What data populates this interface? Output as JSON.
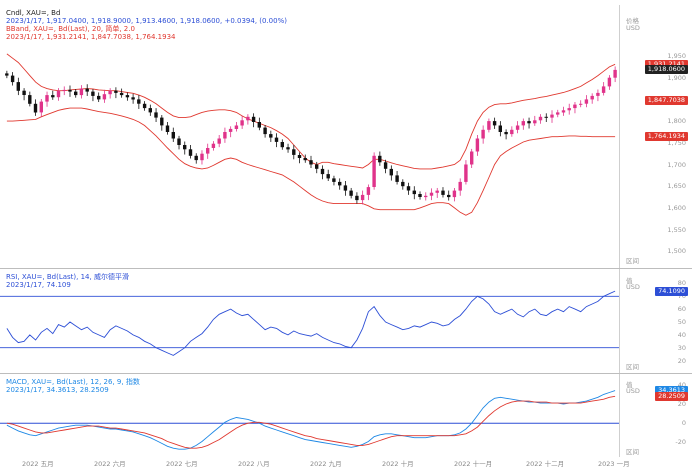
{
  "price_pane": {
    "legend_line1": "Cndl, XAU=, Bd",
    "legend_line2": "2023/1/17, 1,917.0400, 1,918.9000, 1,913.4600, 1,918.0600, +0.0394, (0.00%)",
    "legend_line3": "BBand, XAU=, Bd(Last), 20, 简单, 2.0",
    "legend_line4": "2023/1/17, 1,931.2141, 1,847.7038, 1,764.1934",
    "axis_unit": "价格",
    "axis_currency": "USD",
    "ticks": [
      "1,950",
      "1,900",
      "1,850",
      "1,800",
      "1,750",
      "1,700",
      "1,650",
      "1,600",
      "1,550",
      "1,500"
    ],
    "tags": [
      {
        "label": "1,931.2141",
        "color": "#e0382f"
      },
      {
        "label": "1,918.0600",
        "color": "#222222"
      },
      {
        "label": "1,847.7038",
        "color": "#e0382f"
      },
      {
        "label": "1,764.1934",
        "color": "#e0382f"
      }
    ],
    "footer_tag": "区间"
  },
  "rsi_pane": {
    "legend_line1": "RSI, XAU=, Bd(Last), 14, 威尔德平滑",
    "legend_line2": "2023/1/17, 74.109",
    "axis_unit": "值",
    "axis_currency": "USD",
    "ticks": [
      "80",
      "70",
      "60",
      "50",
      "40",
      "30",
      "20"
    ],
    "tag": {
      "label": "74.1090",
      "color": "#2d4fd6"
    },
    "footer_tag": "区间"
  },
  "macd_pane": {
    "legend_line1": "MACD, XAU=, Bd(Last), 12, 26, 9, 指数",
    "legend_line2": "2023/1/17, 34.3613, 28.2509",
    "axis_unit": "值",
    "axis_currency": "USD",
    "ticks": [
      "40",
      "20",
      "0",
      "-20"
    ],
    "tags": [
      {
        "label": "34.3613",
        "color": "#1e88e5"
      },
      {
        "label": "28.2509",
        "color": "#e0382f"
      }
    ],
    "footer_tag": "区间"
  },
  "date_axis": [
    "2022 五月",
    "2022 六月",
    "2022 七月",
    "2022 八月",
    "2022 九月",
    "2022 十月",
    "2022 十一月",
    "2022 十二月",
    "2023 一月"
  ],
  "colors": {
    "bull_candle": "#e0338a",
    "bear_candle": "#111111",
    "band": "#e0382f",
    "rsi": "#2d4fd6",
    "rsi_level": "#2d4fd6",
    "macd": "#1e88e5",
    "signal": "#e0382f"
  },
  "chart_data": [
    {
      "type": "candlestick",
      "title": "Cndl, XAU=, Bd",
      "ylabel": "价格",
      "ylim": [
        1480,
        1980
      ],
      "close": [
        1905,
        1890,
        1870,
        1860,
        1840,
        1820,
        1845,
        1860,
        1855,
        1870,
        1872,
        1868,
        1860,
        1875,
        1868,
        1858,
        1850,
        1862,
        1870,
        1865,
        1860,
        1855,
        1850,
        1840,
        1830,
        1820,
        1808,
        1790,
        1775,
        1760,
        1745,
        1735,
        1720,
        1710,
        1725,
        1738,
        1748,
        1760,
        1775,
        1782,
        1790,
        1802,
        1810,
        1798,
        1785,
        1770,
        1762,
        1752,
        1740,
        1735,
        1722,
        1715,
        1710,
        1700,
        1690,
        1678,
        1668,
        1660,
        1652,
        1640,
        1628,
        1618,
        1630,
        1648,
        1720,
        1705,
        1690,
        1675,
        1660,
        1650,
        1640,
        1632,
        1625,
        1628,
        1635,
        1640,
        1630,
        1625,
        1640,
        1660,
        1700,
        1730,
        1760,
        1780,
        1800,
        1790,
        1775,
        1770,
        1780,
        1790,
        1800,
        1795,
        1802,
        1810,
        1808,
        1815,
        1820,
        1825,
        1830,
        1838,
        1840,
        1850,
        1858,
        1865,
        1880,
        1900,
        1918
      ],
      "bb_upper": [
        1955,
        1945,
        1935,
        1920,
        1905,
        1890,
        1880,
        1875,
        1872,
        1870,
        1870,
        1872,
        1873,
        1874,
        1875,
        1874,
        1872,
        1871,
        1870,
        1870,
        1868,
        1866,
        1864,
        1860,
        1855,
        1848,
        1840,
        1830,
        1820,
        1812,
        1808,
        1808,
        1810,
        1815,
        1820,
        1823,
        1825,
        1826,
        1826,
        1824,
        1820,
        1812,
        1805,
        1800,
        1795,
        1790,
        1785,
        1778,
        1770,
        1760,
        1745,
        1730,
        1715,
        1705,
        1700,
        1705,
        1705,
        1702,
        1700,
        1698,
        1696,
        1694,
        1692,
        1700,
        1712,
        1712,
        1708,
        1704,
        1700,
        1697,
        1694,
        1691,
        1690,
        1690,
        1690,
        1692,
        1694,
        1697,
        1700,
        1710,
        1735,
        1770,
        1800,
        1820,
        1832,
        1838,
        1840,
        1840,
        1842,
        1845,
        1848,
        1850,
        1852,
        1855,
        1857,
        1860,
        1863,
        1866,
        1870,
        1875,
        1880,
        1888,
        1896,
        1905,
        1915,
        1925,
        1931
      ],
      "bb_lower": [
        1800,
        1800,
        1801,
        1802,
        1803,
        1804,
        1810,
        1815,
        1820,
        1825,
        1828,
        1830,
        1830,
        1830,
        1828,
        1825,
        1822,
        1820,
        1818,
        1815,
        1812,
        1808,
        1804,
        1798,
        1790,
        1778,
        1766,
        1752,
        1738,
        1725,
        1712,
        1702,
        1696,
        1692,
        1690,
        1692,
        1698,
        1705,
        1712,
        1715,
        1712,
        1705,
        1700,
        1696,
        1692,
        1688,
        1684,
        1680,
        1676,
        1668,
        1660,
        1650,
        1640,
        1630,
        1622,
        1616,
        1612,
        1610,
        1610,
        1610,
        1610,
        1610,
        1610,
        1605,
        1598,
        1596,
        1596,
        1596,
        1596,
        1596,
        1596,
        1596,
        1600,
        1605,
        1610,
        1612,
        1612,
        1610,
        1600,
        1590,
        1583,
        1590,
        1612,
        1640,
        1670,
        1700,
        1720,
        1730,
        1738,
        1745,
        1752,
        1756,
        1758,
        1760,
        1762,
        1764,
        1764,
        1765,
        1766,
        1766,
        1765,
        1765,
        1764,
        1764,
        1764,
        1764,
        1764
      ]
    },
    {
      "type": "line",
      "title": "RSI, XAU=, Bd(Last), 14, 威尔德平滑",
      "ylim": [
        15,
        85
      ],
      "levels": [
        70,
        30
      ],
      "series": [
        {
          "name": "RSI",
          "values": [
            45,
            38,
            34,
            35,
            40,
            36,
            42,
            45,
            41,
            48,
            46,
            50,
            47,
            44,
            46,
            42,
            40,
            38,
            44,
            47,
            45,
            43,
            40,
            38,
            35,
            33,
            30,
            28,
            26,
            24,
            27,
            30,
            35,
            38,
            41,
            46,
            52,
            56,
            58,
            60,
            57,
            55,
            56,
            52,
            48,
            44,
            46,
            45,
            42,
            40,
            43,
            41,
            40,
            39,
            41,
            38,
            36,
            34,
            33,
            31,
            30,
            36,
            45,
            58,
            62,
            55,
            50,
            48,
            46,
            44,
            45,
            47,
            46,
            48,
            50,
            49,
            47,
            48,
            52,
            55,
            60,
            66,
            70,
            68,
            64,
            58,
            56,
            58,
            60,
            56,
            54,
            58,
            60,
            56,
            55,
            58,
            60,
            58,
            62,
            60,
            58,
            62,
            64,
            66,
            70,
            72,
            74
          ]
        }
      ]
    },
    {
      "type": "line",
      "title": "MACD, XAU=, Bd(Last), 12, 26, 9, 指数",
      "ylim": [
        -32,
        45
      ],
      "levels": [
        0
      ],
      "series": [
        {
          "name": "MACD",
          "values": [
            -2,
            -5,
            -8,
            -10,
            -12,
            -13,
            -11,
            -9,
            -7,
            -5,
            -4,
            -3,
            -2,
            -2,
            -2,
            -3,
            -4,
            -5,
            -6,
            -6,
            -7,
            -8,
            -9,
            -11,
            -13,
            -15,
            -18,
            -21,
            -24,
            -26,
            -27,
            -27,
            -26,
            -23,
            -19,
            -14,
            -9,
            -4,
            1,
            4,
            6,
            5,
            4,
            2,
            0,
            -3,
            -5,
            -7,
            -9,
            -11,
            -13,
            -15,
            -17,
            -18,
            -19,
            -20,
            -21,
            -22,
            -23,
            -24,
            -25,
            -24,
            -22,
            -19,
            -14,
            -12,
            -11,
            -11,
            -12,
            -13,
            -14,
            -15,
            -15,
            -15,
            -14,
            -13,
            -13,
            -13,
            -12,
            -10,
            -6,
            0,
            8,
            16,
            22,
            26,
            27,
            26,
            25,
            24,
            23,
            22,
            22,
            21,
            21,
            21,
            21,
            20,
            21,
            21,
            22,
            23,
            25,
            27,
            30,
            32,
            34
          ]
        },
        {
          "name": "Signal",
          "values": [
            0,
            -1,
            -3,
            -5,
            -7,
            -9,
            -10,
            -10,
            -9,
            -8,
            -7,
            -6,
            -5,
            -4,
            -3,
            -3,
            -3,
            -4,
            -5,
            -5,
            -6,
            -7,
            -8,
            -9,
            -10,
            -12,
            -14,
            -16,
            -19,
            -21,
            -23,
            -25,
            -26,
            -26,
            -25,
            -23,
            -20,
            -17,
            -13,
            -9,
            -5,
            -2,
            0,
            1,
            1,
            0,
            -1,
            -3,
            -5,
            -7,
            -9,
            -11,
            -13,
            -14,
            -16,
            -17,
            -18,
            -19,
            -20,
            -21,
            -22,
            -23,
            -23,
            -22,
            -20,
            -18,
            -16,
            -14,
            -13,
            -13,
            -13,
            -13,
            -13,
            -13,
            -13,
            -13,
            -13,
            -13,
            -13,
            -12,
            -11,
            -8,
            -4,
            2,
            8,
            13,
            17,
            20,
            22,
            23,
            23,
            23,
            22,
            22,
            22,
            21,
            21,
            21,
            21,
            21,
            21,
            22,
            23,
            24,
            25,
            27,
            28
          ]
        }
      ]
    }
  ]
}
